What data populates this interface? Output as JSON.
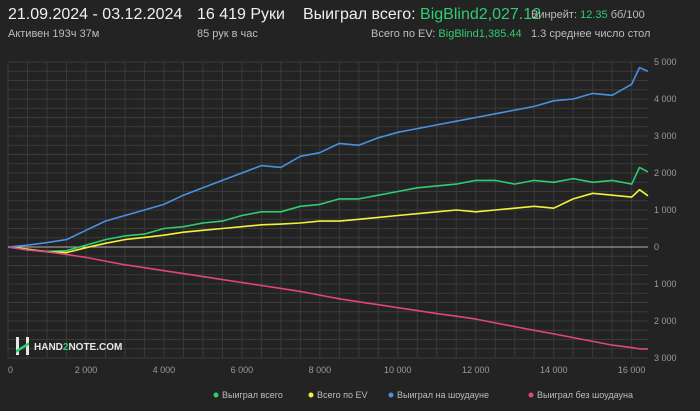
{
  "header": {
    "date_range": "21.09.2024 - 03.12.2024",
    "active_time": "Активен 193ч 37м",
    "hands_count": "16 419 Руки",
    "hands_rate": "85 рук в час",
    "won_total_label": "Выиграл всего:",
    "won_total_value": "BigBlind2,027.12",
    "ev_total_label": "Всего по EV:",
    "ev_total_value": "BigBlind1,385.44",
    "winrate_label": "Винрейт:",
    "winrate_value": "12.35",
    "winrate_unit": "бб/100",
    "avg_tables": "1.3 среднее число стол"
  },
  "logo": {
    "text_left": "HAND",
    "text_mid": "2",
    "text_right": "NOTE.COM",
    "icon": "hand2note-logo-icon"
  },
  "colors": {
    "background": "#232323",
    "grid": "#3a3a3a",
    "zero_line": "#b0b0b0",
    "won_total": "#2fcc71",
    "ev": "#f2f23a",
    "showdown": "#4a90e2",
    "non_showdown": "#e0457b"
  },
  "chart_data": {
    "type": "line",
    "xlabel": "",
    "ylabel": "",
    "xlim": [
      0,
      16419
    ],
    "ylim": [
      -3000,
      5000
    ],
    "x_ticks": [
      0,
      2000,
      4000,
      6000,
      8000,
      10000,
      12000,
      14000,
      16000
    ],
    "x_tick_labels": [
      "0",
      "2 000",
      "4 000",
      "6 000",
      "8 000",
      "10 000",
      "12 000",
      "14 000",
      "16 000"
    ],
    "y_ticks": [
      5000,
      4000,
      3000,
      2000,
      1000,
      0,
      -1000,
      -2000,
      -3000
    ],
    "y_tick_labels": [
      "5 000",
      "4 000",
      "3 000",
      "2 000",
      "1 000",
      "0",
      "1 000",
      "2 000",
      "3 000"
    ],
    "grid": true,
    "legend_position": "bottom",
    "x": [
      0,
      500,
      1000,
      1500,
      2000,
      2500,
      3000,
      3500,
      4000,
      4500,
      5000,
      5500,
      6000,
      6500,
      7000,
      7500,
      8000,
      8500,
      9000,
      9500,
      10000,
      10500,
      11000,
      11500,
      12000,
      12500,
      13000,
      13500,
      14000,
      14500,
      15000,
      15500,
      16000,
      16200,
      16419
    ],
    "series": [
      {
        "name": "Выиграл всего",
        "color": "#2fcc71",
        "values": [
          0,
          -80,
          -120,
          -100,
          50,
          200,
          300,
          350,
          500,
          550,
          650,
          700,
          850,
          950,
          950,
          1100,
          1150,
          1300,
          1300,
          1400,
          1500,
          1600,
          1650,
          1700,
          1800,
          1800,
          1700,
          1800,
          1750,
          1850,
          1750,
          1800,
          1700,
          2150,
          2030
        ]
      },
      {
        "name": "Всего по EV",
        "color": "#f2f23a",
        "values": [
          0,
          -60,
          -130,
          -150,
          -20,
          100,
          200,
          260,
          320,
          400,
          450,
          500,
          550,
          600,
          620,
          650,
          700,
          700,
          750,
          800,
          850,
          900,
          950,
          1000,
          950,
          1000,
          1050,
          1100,
          1050,
          1300,
          1450,
          1400,
          1350,
          1550,
          1385
        ]
      },
      {
        "name": "Выиграл на шоудауне",
        "color": "#4a90e2",
        "values": [
          0,
          50,
          120,
          200,
          450,
          700,
          850,
          1000,
          1150,
          1400,
          1600,
          1800,
          2000,
          2200,
          2150,
          2450,
          2550,
          2800,
          2750,
          2950,
          3100,
          3200,
          3300,
          3400,
          3500,
          3600,
          3700,
          3800,
          3950,
          4000,
          4150,
          4100,
          4400,
          4850,
          4750
        ]
      },
      {
        "name": "Выиграл без шоудауна",
        "color": "#e0457b",
        "values": [
          0,
          -80,
          -130,
          -200,
          -280,
          -380,
          -480,
          -560,
          -640,
          -720,
          -800,
          -880,
          -960,
          -1040,
          -1120,
          -1200,
          -1300,
          -1400,
          -1480,
          -1560,
          -1640,
          -1720,
          -1800,
          -1870,
          -1950,
          -2050,
          -2150,
          -2250,
          -2350,
          -2450,
          -2550,
          -2650,
          -2720,
          -2750,
          -2760
        ]
      }
    ]
  }
}
